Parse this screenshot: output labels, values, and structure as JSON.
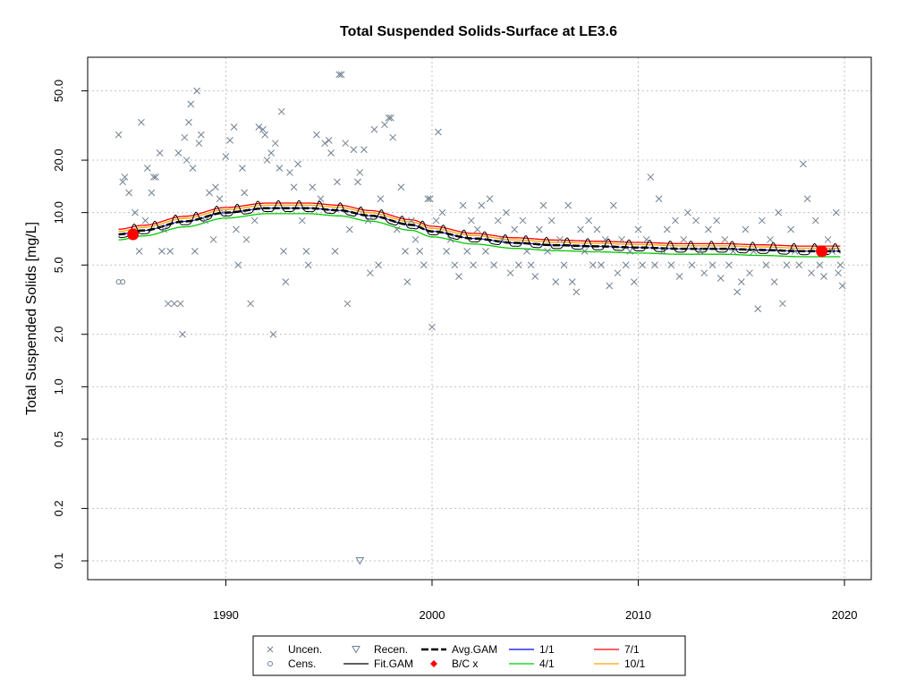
{
  "chart_data": {
    "type": "scatter",
    "title": "Total Suspended Solids-Surface at LE3.6",
    "xlabel": "",
    "ylabel": "Total Suspended Solids [mg/L]",
    "y_scale": "log",
    "xlim": [
      1983.3,
      2021.3
    ],
    "ylim": [
      0.078,
      78
    ],
    "x_ticks": [
      "1990",
      "2000",
      "2010",
      "2020"
    ],
    "y_ticks": [
      "0.1",
      "0.2",
      "0.5",
      "1.0",
      "2.0",
      "5.0",
      "10.0",
      "20.0",
      "50.0"
    ],
    "y_tick_values": [
      0.1,
      0.2,
      0.5,
      1,
      2,
      5,
      10,
      20,
      50
    ],
    "grid": true,
    "legend_position": "bottom",
    "legend": [
      {
        "label": "Uncen.",
        "kind": "cross"
      },
      {
        "label": "Recen.",
        "kind": "triangle"
      },
      {
        "label": "Avg.GAM",
        "kind": "dashed-line"
      },
      {
        "label": "1/1",
        "kind": "line",
        "color": "#0000ff"
      },
      {
        "label": "7/1",
        "kind": "line",
        "color": "#ff0000"
      },
      {
        "label": "Cens.",
        "kind": "circle"
      },
      {
        "label": "Fit.GAM",
        "kind": "line",
        "color": "#000000"
      },
      {
        "label": "B/C x",
        "kind": "diamond",
        "color": "#ff0000"
      },
      {
        "label": "4/1",
        "kind": "line",
        "color": "#00cc00"
      },
      {
        "label": "10/1",
        "kind": "line",
        "color": "#ffa500"
      }
    ],
    "colors": {
      "uncensored": "#708090",
      "avg_gam": "#000000",
      "fit_gam": "#000000",
      "jan1": "#0000ff",
      "apr1": "#00cc00",
      "jul1": "#ff0000",
      "oct1": "#ffa500",
      "bc": "#ff0000",
      "grid": "#c0c0c0"
    },
    "avg_gam": {
      "x": [
        1984.8,
        1986,
        1988,
        1990,
        1992,
        1994,
        1995.5,
        1997,
        1999,
        2000,
        2002,
        2004,
        2006,
        2008,
        2010,
        2012,
        2014,
        2016,
        2018,
        2019.8
      ],
      "y": [
        7.5,
        7.9,
        8.9,
        10.0,
        10.6,
        10.6,
        10.3,
        9.6,
        8.5,
        7.8,
        7.1,
        6.7,
        6.5,
        6.4,
        6.3,
        6.2,
        6.2,
        6.1,
        6.0,
        6.0
      ]
    },
    "seasonal_offsets": {
      "jan1": 1.0,
      "apr1": 0.93,
      "jul1": 1.07,
      "oct1": 1.04
    },
    "seasonal_amplitude": 0.09,
    "bc_points": [
      {
        "x": 1985.5,
        "y": 7.5
      },
      {
        "x": 2018.9,
        "y": 6.0
      }
    ],
    "recensored": [
      {
        "x": 1996.5,
        "y": 0.1
      }
    ],
    "censored": [
      {
        "x": 1984.8,
        "y": 4.0
      },
      {
        "x": 1985.0,
        "y": 4.0
      }
    ],
    "uncensored": [
      {
        "x": 1984.8,
        "y": 28
      },
      {
        "x": 1985.0,
        "y": 15
      },
      {
        "x": 1985.1,
        "y": 16
      },
      {
        "x": 1985.3,
        "y": 13
      },
      {
        "x": 1985.6,
        "y": 10
      },
      {
        "x": 1985.8,
        "y": 6
      },
      {
        "x": 1985.9,
        "y": 33
      },
      {
        "x": 1986.1,
        "y": 9
      },
      {
        "x": 1986.2,
        "y": 18
      },
      {
        "x": 1986.4,
        "y": 13
      },
      {
        "x": 1986.5,
        "y": 16
      },
      {
        "x": 1986.6,
        "y": 16
      },
      {
        "x": 1986.8,
        "y": 22
      },
      {
        "x": 1986.9,
        "y": 6
      },
      {
        "x": 1987.0,
        "y": 8
      },
      {
        "x": 1987.2,
        "y": 3
      },
      {
        "x": 1987.3,
        "y": 6
      },
      {
        "x": 1987.5,
        "y": 3
      },
      {
        "x": 1987.7,
        "y": 22
      },
      {
        "x": 1987.8,
        "y": 3
      },
      {
        "x": 1987.9,
        "y": 2
      },
      {
        "x": 1988.0,
        "y": 27
      },
      {
        "x": 1988.1,
        "y": 20
      },
      {
        "x": 1988.2,
        "y": 33
      },
      {
        "x": 1988.3,
        "y": 42
      },
      {
        "x": 1988.4,
        "y": 18
      },
      {
        "x": 1988.5,
        "y": 6
      },
      {
        "x": 1988.6,
        "y": 50
      },
      {
        "x": 1988.7,
        "y": 25
      },
      {
        "x": 1988.8,
        "y": 28
      },
      {
        "x": 1989.0,
        "y": 9
      },
      {
        "x": 1989.2,
        "y": 13
      },
      {
        "x": 1989.4,
        "y": 7
      },
      {
        "x": 1989.5,
        "y": 14
      },
      {
        "x": 1989.7,
        "y": 12
      },
      {
        "x": 1989.9,
        "y": 10
      },
      {
        "x": 1990.0,
        "y": 21
      },
      {
        "x": 1990.2,
        "y": 26
      },
      {
        "x": 1990.4,
        "y": 31
      },
      {
        "x": 1990.5,
        "y": 8
      },
      {
        "x": 1990.6,
        "y": 5
      },
      {
        "x": 1990.8,
        "y": 18
      },
      {
        "x": 1990.9,
        "y": 13
      },
      {
        "x": 1991.0,
        "y": 7
      },
      {
        "x": 1991.2,
        "y": 3
      },
      {
        "x": 1991.4,
        "y": 9
      },
      {
        "x": 1991.6,
        "y": 31
      },
      {
        "x": 1991.8,
        "y": 30
      },
      {
        "x": 1991.9,
        "y": 28
      },
      {
        "x": 1992.0,
        "y": 20
      },
      {
        "x": 1992.2,
        "y": 22
      },
      {
        "x": 1992.3,
        "y": 2
      },
      {
        "x": 1992.4,
        "y": 25
      },
      {
        "x": 1992.6,
        "y": 18
      },
      {
        "x": 1992.7,
        "y": 38
      },
      {
        "x": 1992.8,
        "y": 6
      },
      {
        "x": 1992.9,
        "y": 4
      },
      {
        "x": 1993.1,
        "y": 17
      },
      {
        "x": 1993.3,
        "y": 14
      },
      {
        "x": 1993.5,
        "y": 19
      },
      {
        "x": 1993.7,
        "y": 9
      },
      {
        "x": 1993.9,
        "y": 6
      },
      {
        "x": 1994.0,
        "y": 5
      },
      {
        "x": 1994.2,
        "y": 14
      },
      {
        "x": 1994.4,
        "y": 28
      },
      {
        "x": 1994.6,
        "y": 12
      },
      {
        "x": 1994.8,
        "y": 25
      },
      {
        "x": 1995.0,
        "y": 26
      },
      {
        "x": 1995.1,
        "y": 22
      },
      {
        "x": 1995.3,
        "y": 6
      },
      {
        "x": 1995.4,
        "y": 15
      },
      {
        "x": 1995.5,
        "y": 62
      },
      {
        "x": 1995.6,
        "y": 62
      },
      {
        "x": 1995.8,
        "y": 25
      },
      {
        "x": 1995.9,
        "y": 3
      },
      {
        "x": 1996.0,
        "y": 8
      },
      {
        "x": 1996.2,
        "y": 23
      },
      {
        "x": 1996.4,
        "y": 15
      },
      {
        "x": 1996.5,
        "y": 17
      },
      {
        "x": 1996.7,
        "y": 23
      },
      {
        "x": 1996.9,
        "y": 9
      },
      {
        "x": 1997.0,
        "y": 4.5
      },
      {
        "x": 1997.2,
        "y": 30
      },
      {
        "x": 1997.4,
        "y": 5
      },
      {
        "x": 1997.5,
        "y": 12
      },
      {
        "x": 1997.7,
        "y": 32
      },
      {
        "x": 1997.9,
        "y": 35
      },
      {
        "x": 1998.0,
        "y": 35
      },
      {
        "x": 1998.1,
        "y": 27
      },
      {
        "x": 1998.3,
        "y": 8
      },
      {
        "x": 1998.5,
        "y": 14
      },
      {
        "x": 1998.7,
        "y": 6
      },
      {
        "x": 1998.8,
        "y": 4
      },
      {
        "x": 1999.0,
        "y": 9
      },
      {
        "x": 1999.2,
        "y": 7
      },
      {
        "x": 1999.4,
        "y": 6
      },
      {
        "x": 1999.6,
        "y": 5
      },
      {
        "x": 1999.8,
        "y": 12
      },
      {
        "x": 1999.9,
        "y": 12
      },
      {
        "x": 2000.0,
        "y": 2.2
      },
      {
        "x": 2000.2,
        "y": 9
      },
      {
        "x": 2000.3,
        "y": 29
      },
      {
        "x": 2000.5,
        "y": 10
      },
      {
        "x": 2000.7,
        "y": 6
      },
      {
        "x": 2000.9,
        "y": 7
      },
      {
        "x": 2001.1,
        "y": 5
      },
      {
        "x": 2001.3,
        "y": 4.3
      },
      {
        "x": 2001.5,
        "y": 11
      },
      {
        "x": 2001.7,
        "y": 6
      },
      {
        "x": 2001.9,
        "y": 9
      },
      {
        "x": 2002.0,
        "y": 5
      },
      {
        "x": 2002.2,
        "y": 8
      },
      {
        "x": 2002.4,
        "y": 11
      },
      {
        "x": 2002.6,
        "y": 6
      },
      {
        "x": 2002.8,
        "y": 12
      },
      {
        "x": 2003.0,
        "y": 5
      },
      {
        "x": 2003.2,
        "y": 9
      },
      {
        "x": 2003.4,
        "y": 7
      },
      {
        "x": 2003.6,
        "y": 10
      },
      {
        "x": 2003.8,
        "y": 4.5
      },
      {
        "x": 2004.0,
        "y": 8
      },
      {
        "x": 2004.2,
        "y": 5
      },
      {
        "x": 2004.4,
        "y": 9
      },
      {
        "x": 2004.6,
        "y": 6
      },
      {
        "x": 2004.8,
        "y": 5
      },
      {
        "x": 2005.0,
        "y": 4.3
      },
      {
        "x": 2005.2,
        "y": 8
      },
      {
        "x": 2005.4,
        "y": 11
      },
      {
        "x": 2005.6,
        "y": 6
      },
      {
        "x": 2005.8,
        "y": 9
      },
      {
        "x": 2006.0,
        "y": 4
      },
      {
        "x": 2006.2,
        "y": 7
      },
      {
        "x": 2006.4,
        "y": 5
      },
      {
        "x": 2006.6,
        "y": 11
      },
      {
        "x": 2006.8,
        "y": 4
      },
      {
        "x": 2007.0,
        "y": 3.5
      },
      {
        "x": 2007.2,
        "y": 8
      },
      {
        "x": 2007.4,
        "y": 6
      },
      {
        "x": 2007.6,
        "y": 9
      },
      {
        "x": 2007.8,
        "y": 5
      },
      {
        "x": 2008.0,
        "y": 8
      },
      {
        "x": 2008.2,
        "y": 5
      },
      {
        "x": 2008.4,
        "y": 7
      },
      {
        "x": 2008.6,
        "y": 3.8
      },
      {
        "x": 2008.8,
        "y": 11
      },
      {
        "x": 2009.0,
        "y": 4.5
      },
      {
        "x": 2009.2,
        "y": 7
      },
      {
        "x": 2009.4,
        "y": 5
      },
      {
        "x": 2009.6,
        "y": 6
      },
      {
        "x": 2009.8,
        "y": 4
      },
      {
        "x": 2010.0,
        "y": 8
      },
      {
        "x": 2010.2,
        "y": 5
      },
      {
        "x": 2010.4,
        "y": 7
      },
      {
        "x": 2010.6,
        "y": 16
      },
      {
        "x": 2010.8,
        "y": 5
      },
      {
        "x": 2011.0,
        "y": 12
      },
      {
        "x": 2011.2,
        "y": 6
      },
      {
        "x": 2011.4,
        "y": 8
      },
      {
        "x": 2011.6,
        "y": 5
      },
      {
        "x": 2011.8,
        "y": 9
      },
      {
        "x": 2012.0,
        "y": 4.3
      },
      {
        "x": 2012.2,
        "y": 7
      },
      {
        "x": 2012.4,
        "y": 10
      },
      {
        "x": 2012.6,
        "y": 5
      },
      {
        "x": 2012.8,
        "y": 9
      },
      {
        "x": 2013.0,
        "y": 6
      },
      {
        "x": 2013.2,
        "y": 4.5
      },
      {
        "x": 2013.4,
        "y": 8
      },
      {
        "x": 2013.6,
        "y": 5
      },
      {
        "x": 2013.8,
        "y": 9
      },
      {
        "x": 2014.0,
        "y": 4.2
      },
      {
        "x": 2014.2,
        "y": 7
      },
      {
        "x": 2014.4,
        "y": 5
      },
      {
        "x": 2014.6,
        "y": 6
      },
      {
        "x": 2014.8,
        "y": 3.5
      },
      {
        "x": 2015.0,
        "y": 4
      },
      {
        "x": 2015.2,
        "y": 8
      },
      {
        "x": 2015.4,
        "y": 4.5
      },
      {
        "x": 2015.6,
        "y": 6
      },
      {
        "x": 2015.8,
        "y": 2.8
      },
      {
        "x": 2016.0,
        "y": 9
      },
      {
        "x": 2016.2,
        "y": 5
      },
      {
        "x": 2016.4,
        "y": 7
      },
      {
        "x": 2016.6,
        "y": 4
      },
      {
        "x": 2016.8,
        "y": 10
      },
      {
        "x": 2017.0,
        "y": 3
      },
      {
        "x": 2017.2,
        "y": 5
      },
      {
        "x": 2017.4,
        "y": 8
      },
      {
        "x": 2017.6,
        "y": 6
      },
      {
        "x": 2017.8,
        "y": 5
      },
      {
        "x": 2018.0,
        "y": 19
      },
      {
        "x": 2018.2,
        "y": 12
      },
      {
        "x": 2018.4,
        "y": 4.5
      },
      {
        "x": 2018.6,
        "y": 9
      },
      {
        "x": 2018.8,
        "y": 5
      },
      {
        "x": 2019.0,
        "y": 4.3
      },
      {
        "x": 2019.2,
        "y": 7
      },
      {
        "x": 2019.4,
        "y": 6
      },
      {
        "x": 2019.6,
        "y": 10
      },
      {
        "x": 2019.7,
        "y": 4.5
      },
      {
        "x": 2019.8,
        "y": 5
      },
      {
        "x": 2019.9,
        "y": 3.8
      }
    ]
  }
}
